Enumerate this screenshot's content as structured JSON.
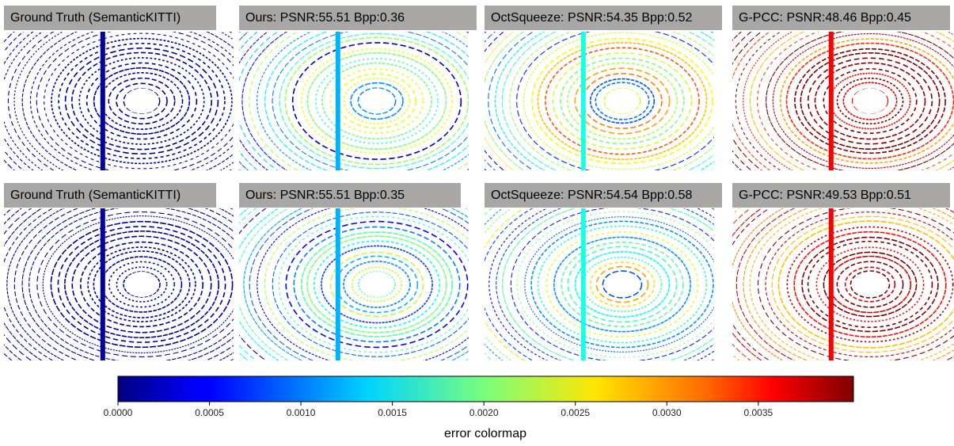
{
  "panels": [
    [
      "Ground Truth (SemanticKITTI)",
      "Ours: PSNR:55.51 Bpp:0.36",
      "OctSqueeze: PSNR:54.35 Bpp:0.52",
      "G-PCC: PSNR:48.46 Bpp:0.45"
    ],
    [
      "Ground Truth (SemanticKITTI)",
      "Ours: PSNR:55.51 Bpp:0.35",
      "OctSqueeze: PSNR:54.54 Bpp:0.58",
      "G-PCC: PSNR:49.53 Bpp:0.51"
    ]
  ],
  "colorbar": {
    "label": "error colormap",
    "lim": [
      0,
      0.00402
    ],
    "ticks": [
      {
        "value": 0,
        "label": "0.0000"
      },
      {
        "value": 0.0005,
        "label": "0.0005"
      },
      {
        "value": 0.001,
        "label": "0.0010"
      },
      {
        "value": 0.0015,
        "label": "0.0015"
      },
      {
        "value": 0.002,
        "label": "0.0020"
      },
      {
        "value": 0.0025,
        "label": "0.0025"
      },
      {
        "value": 0.003,
        "label": "0.0030"
      },
      {
        "value": 0.0035,
        "label": "0.0035"
      }
    ]
  }
}
